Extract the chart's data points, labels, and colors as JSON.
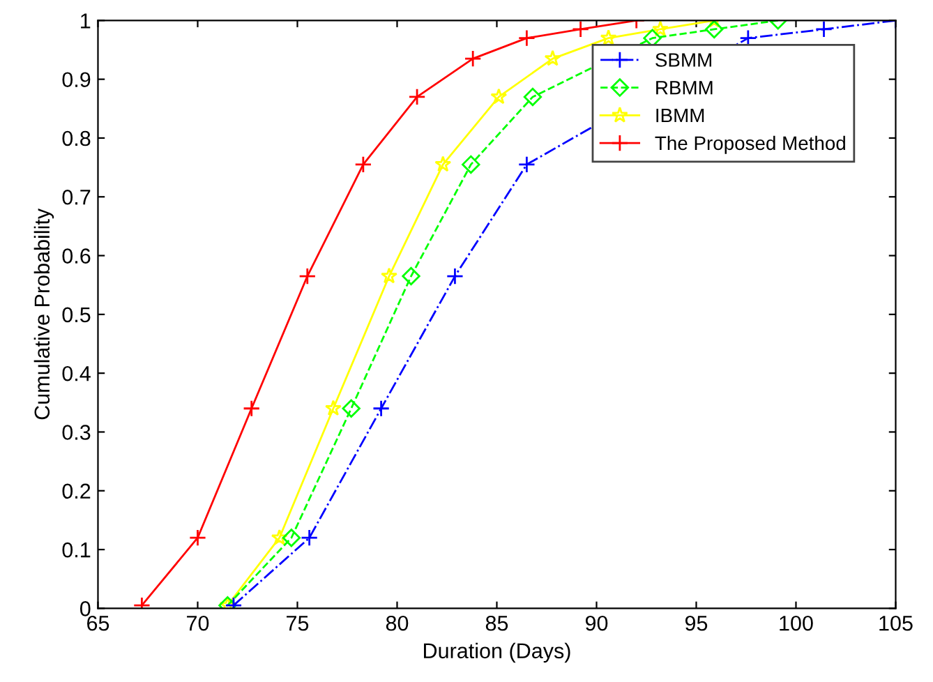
{
  "chart_data": {
    "type": "line",
    "xlabel": "Duration (Days)",
    "ylabel": "Cumulative Probability",
    "xlim": [
      65,
      105
    ],
    "xticks": [
      65,
      70,
      75,
      80,
      85,
      90,
      95,
      100,
      105
    ],
    "ylim": [
      0,
      1
    ],
    "yticks": [
      0,
      0.1,
      0.2,
      0.3,
      0.4,
      0.5,
      0.6,
      0.7,
      0.8,
      0.9,
      1
    ],
    "grid": false,
    "legend": "top right",
    "series": [
      {
        "name": "SBMM",
        "color": "#0000ff",
        "marker": "cross",
        "line_style": "dashdot",
        "x": [
          71.8,
          75.6,
          79.2,
          82.9,
          86.5,
          97.6,
          101.4,
          105
        ],
        "values": [
          0.005,
          0.12,
          0.34,
          0.565,
          0.755,
          0.97,
          0.985,
          1.0
        ]
      },
      {
        "name": "RBMM",
        "color": "#00ff00",
        "marker": "diamond",
        "line_style": "dashed",
        "x": [
          71.5,
          74.7,
          77.7,
          80.7,
          83.7,
          86.8,
          92.8,
          95.9,
          99.1
        ],
        "values": [
          0.005,
          0.12,
          0.34,
          0.565,
          0.755,
          0.87,
          0.97,
          0.985,
          1.0
        ]
      },
      {
        "name": "IBMM",
        "color": "#ffff00",
        "marker": "star",
        "line_style": "solid",
        "x": [
          71.5,
          74.1,
          76.8,
          79.6,
          82.3,
          85.1,
          87.8,
          90.6,
          93.2,
          95.9
        ],
        "values": [
          0.005,
          0.12,
          0.34,
          0.565,
          0.755,
          0.87,
          0.935,
          0.97,
          0.985,
          1.0
        ]
      },
      {
        "name": "The Proposed Method",
        "color": "#ff0000",
        "marker": "cross",
        "line_style": "solid",
        "x": [
          67.2,
          70.0,
          72.7,
          75.5,
          78.3,
          81.0,
          83.8,
          86.5,
          89.2,
          92.0
        ],
        "values": [
          0.005,
          0.12,
          0.34,
          0.565,
          0.755,
          0.87,
          0.935,
          0.97,
          0.985,
          1.0
        ]
      }
    ]
  }
}
